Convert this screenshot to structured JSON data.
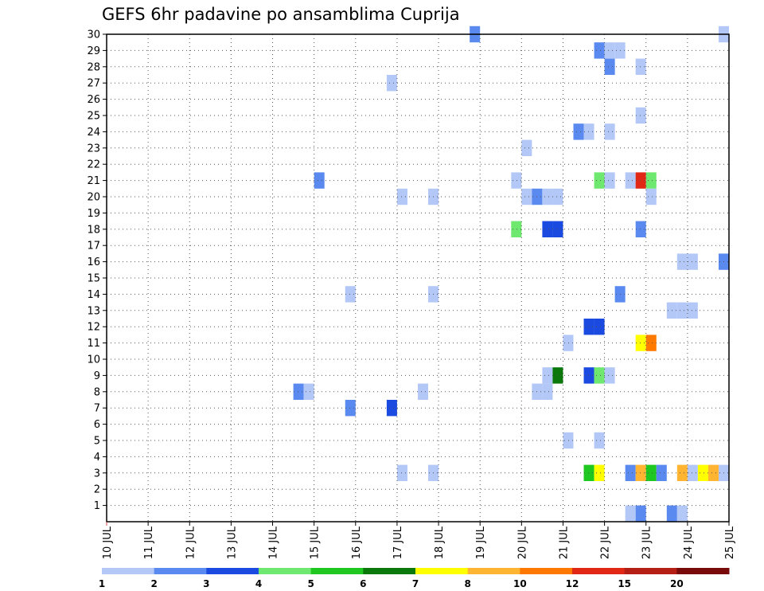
{
  "chart_data": {
    "type": "heatmap",
    "title": "GEFS 6hr padavine po ansamblima Cuprija",
    "x_tick_labels": [
      "10 JUL",
      "11 JUL",
      "12 JUL",
      "13 JUL",
      "14 JUL",
      "15 JUL",
      "16 JUL",
      "17 JUL",
      "18 JUL",
      "19 JUL",
      "20 JUL",
      "21 JUL",
      "22 JUL",
      "23 JUL",
      "24 JUL",
      "25 JUL"
    ],
    "y_tick_labels": [
      "1",
      "2",
      "3",
      "4",
      "5",
      "6",
      "7",
      "8",
      "9",
      "10",
      "11",
      "12",
      "13",
      "14",
      "15",
      "16",
      "17",
      "18",
      "19",
      "20",
      "21",
      "22",
      "23",
      "24",
      "25",
      "26",
      "27",
      "28",
      "29",
      "30"
    ],
    "xlim_days": [
      10,
      25
    ],
    "ylim": [
      0,
      30
    ],
    "grid": true,
    "legend_position": "bottom",
    "colorbar": {
      "labels": [
        "1",
        "2",
        "3",
        "4",
        "5",
        "6",
        "7",
        "8",
        "10",
        "12",
        "15",
        "20"
      ],
      "colors": [
        "#b4c8f8",
        "#5a8af0",
        "#1a4ae0",
        "#6ee86e",
        "#1ec81e",
        "#0a780a",
        "#ffff00",
        "#ffb432",
        "#ff7800",
        "#e12814",
        "#b41e14",
        "#780a0a"
      ]
    },
    "cells": [
      {
        "day": 18.875,
        "member": 30,
        "bin": 2
      },
      {
        "day": 24.875,
        "member": 30,
        "bin": 1
      },
      {
        "day": 21.875,
        "member": 29,
        "bin": 2
      },
      {
        "day": 22.125,
        "member": 29,
        "bin": 1
      },
      {
        "day": 22.375,
        "member": 29,
        "bin": 1
      },
      {
        "day": 22.125,
        "member": 28,
        "bin": 2
      },
      {
        "day": 22.875,
        "member": 28,
        "bin": 1
      },
      {
        "day": 16.875,
        "member": 27,
        "bin": 1
      },
      {
        "day": 22.875,
        "member": 25,
        "bin": 1
      },
      {
        "day": 21.375,
        "member": 24,
        "bin": 2
      },
      {
        "day": 21.625,
        "member": 24,
        "bin": 1
      },
      {
        "day": 22.125,
        "member": 24,
        "bin": 1
      },
      {
        "day": 20.125,
        "member": 23,
        "bin": 1
      },
      {
        "day": 15.125,
        "member": 21,
        "bin": 2
      },
      {
        "day": 19.875,
        "member": 21,
        "bin": 1
      },
      {
        "day": 21.875,
        "member": 21,
        "bin": 4
      },
      {
        "day": 22.125,
        "member": 21,
        "bin": 1
      },
      {
        "day": 22.625,
        "member": 21,
        "bin": 1
      },
      {
        "day": 22.875,
        "member": 21,
        "bin": 10
      },
      {
        "day": 23.125,
        "member": 21,
        "bin": 4
      },
      {
        "day": 17.125,
        "member": 20,
        "bin": 1
      },
      {
        "day": 17.875,
        "member": 20,
        "bin": 1
      },
      {
        "day": 20.125,
        "member": 20,
        "bin": 1
      },
      {
        "day": 20.375,
        "member": 20,
        "bin": 2
      },
      {
        "day": 20.625,
        "member": 20,
        "bin": 1
      },
      {
        "day": 20.875,
        "member": 20,
        "bin": 1
      },
      {
        "day": 23.125,
        "member": 20,
        "bin": 1
      },
      {
        "day": 19.875,
        "member": 18,
        "bin": 4
      },
      {
        "day": 20.625,
        "member": 18,
        "bin": 3
      },
      {
        "day": 20.875,
        "member": 18,
        "bin": 3
      },
      {
        "day": 22.875,
        "member": 18,
        "bin": 2
      },
      {
        "day": 23.875,
        "member": 16,
        "bin": 1
      },
      {
        "day": 24.125,
        "member": 16,
        "bin": 1
      },
      {
        "day": 24.875,
        "member": 16,
        "bin": 2
      },
      {
        "day": 15.875,
        "member": 14,
        "bin": 1
      },
      {
        "day": 17.875,
        "member": 14,
        "bin": 1
      },
      {
        "day": 22.375,
        "member": 14,
        "bin": 2
      },
      {
        "day": 23.625,
        "member": 13,
        "bin": 1
      },
      {
        "day": 23.875,
        "member": 13,
        "bin": 1
      },
      {
        "day": 24.125,
        "member": 13,
        "bin": 1
      },
      {
        "day": 21.625,
        "member": 12,
        "bin": 3
      },
      {
        "day": 21.875,
        "member": 12,
        "bin": 3
      },
      {
        "day": 21.125,
        "member": 11,
        "bin": 1
      },
      {
        "day": 22.875,
        "member": 11,
        "bin": 7
      },
      {
        "day": 23.125,
        "member": 11,
        "bin": 9
      },
      {
        "day": 20.625,
        "member": 9,
        "bin": 1
      },
      {
        "day": 20.875,
        "member": 9,
        "bin": 6
      },
      {
        "day": 21.625,
        "member": 9,
        "bin": 3
      },
      {
        "day": 21.875,
        "member": 9,
        "bin": 4
      },
      {
        "day": 22.125,
        "member": 9,
        "bin": 1
      },
      {
        "day": 14.625,
        "member": 8,
        "bin": 2
      },
      {
        "day": 14.875,
        "member": 8,
        "bin": 1
      },
      {
        "day": 17.625,
        "member": 8,
        "bin": 1
      },
      {
        "day": 20.375,
        "member": 8,
        "bin": 1
      },
      {
        "day": 20.625,
        "member": 8,
        "bin": 1
      },
      {
        "day": 15.875,
        "member": 7,
        "bin": 2
      },
      {
        "day": 16.875,
        "member": 7,
        "bin": 3
      },
      {
        "day": 21.125,
        "member": 5,
        "bin": 1
      },
      {
        "day": 21.875,
        "member": 5,
        "bin": 1
      },
      {
        "day": 17.125,
        "member": 3,
        "bin": 1
      },
      {
        "day": 17.875,
        "member": 3,
        "bin": 1
      },
      {
        "day": 21.625,
        "member": 3,
        "bin": 5
      },
      {
        "day": 21.875,
        "member": 3,
        "bin": 7
      },
      {
        "day": 22.625,
        "member": 3,
        "bin": 2
      },
      {
        "day": 22.875,
        "member": 3,
        "bin": 8
      },
      {
        "day": 23.125,
        "member": 3,
        "bin": 5
      },
      {
        "day": 23.375,
        "member": 3,
        "bin": 2
      },
      {
        "day": 23.875,
        "member": 3,
        "bin": 8
      },
      {
        "day": 24.125,
        "member": 3,
        "bin": 1
      },
      {
        "day": 24.375,
        "member": 3,
        "bin": 7
      },
      {
        "day": 24.625,
        "member": 3,
        "bin": 8
      },
      {
        "day": 24.875,
        "member": 3,
        "bin": 1
      },
      {
        "day": 22.625,
        "member": 0.5,
        "bin": 1
      },
      {
        "day": 22.875,
        "member": 0.5,
        "bin": 2
      },
      {
        "day": 23.625,
        "member": 0.5,
        "bin": 2
      },
      {
        "day": 23.875,
        "member": 0.5,
        "bin": 1
      }
    ]
  }
}
